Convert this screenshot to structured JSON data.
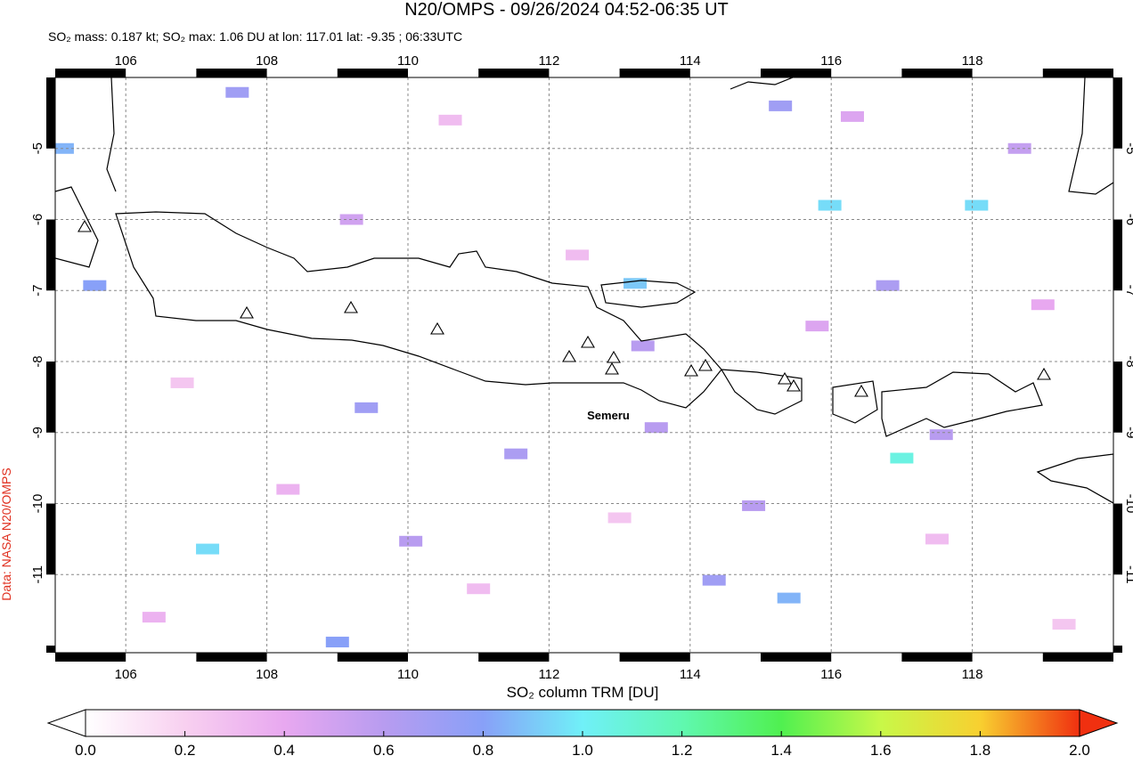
{
  "title": "N20/OMPS - 09/26/2024 04:52-06:35 UT",
  "subtitle": "SO₂ mass: 0.187 kt; SO₂ max: 1.06 DU at lon: 117.01 lat: -9.35 ; 06:33UTC",
  "credit": "Data: NASA N20/OMPS",
  "volcano_label": "Semeru",
  "map": {
    "xlim": [
      105,
      120
    ],
    "ylim": [
      -12.1,
      -4
    ],
    "xticks": [
      106,
      108,
      110,
      112,
      114,
      116,
      118
    ],
    "yticks": [
      -5,
      -6,
      -7,
      -8,
      -9,
      -10,
      -11
    ],
    "grid": true
  },
  "colorbar": {
    "label": "SO₂ column TRM [DU]",
    "clim": [
      0,
      2
    ],
    "colors": [
      "#ffffff",
      "#f8d0f0",
      "#e8a8f0",
      "#b89cf0",
      "#88a0f8",
      "#70f0f8",
      "#60f8b0",
      "#50f050",
      "#c8f848",
      "#f8d030",
      "#f03010"
    ],
    "ticks": [
      {
        "value": 0,
        "label": "0.0"
      },
      {
        "value": 0.2,
        "label": "0.2"
      },
      {
        "value": 0.4,
        "label": "0.4"
      },
      {
        "value": 0.6,
        "label": "0.6"
      },
      {
        "value": 0.8,
        "label": "0.8"
      },
      {
        "value": 1,
        "label": "1.0"
      },
      {
        "value": 1.2,
        "label": "1.2"
      },
      {
        "value": 1.4,
        "label": "1.4"
      },
      {
        "value": 1.6,
        "label": "1.6"
      },
      {
        "value": 1.8,
        "label": "1.8"
      },
      {
        "value": 2,
        "label": "2.0"
      }
    ]
  },
  "so2_pixels": [
    {
      "lon": 113.22,
      "lat": -6.9,
      "value": 0.9
    },
    {
      "lon": 115.98,
      "lat": -5.8,
      "value": 0.95
    },
    {
      "lon": 117.0,
      "lat": -9.36,
      "value": 1.06
    },
    {
      "lon": 118.06,
      "lat": -5.8,
      "value": 0.95
    },
    {
      "lon": 115.4,
      "lat": -11.33,
      "value": 0.85
    },
    {
      "lon": 107.16,
      "lat": -10.64,
      "value": 0.95
    },
    {
      "lon": 105.1,
      "lat": -5.0,
      "value": 0.85
    },
    {
      "lon": 105.56,
      "lat": -6.93,
      "value": 0.8
    },
    {
      "lon": 115.28,
      "lat": -4.4,
      "value": 0.7
    },
    {
      "lon": 107.58,
      "lat": -4.21,
      "value": 0.7
    },
    {
      "lon": 116.8,
      "lat": -6.93,
      "value": 0.65
    },
    {
      "lon": 114.34,
      "lat": -11.08,
      "value": 0.7
    },
    {
      "lon": 114.9,
      "lat": -10.03,
      "value": 0.6
    },
    {
      "lon": 109.41,
      "lat": -8.65,
      "value": 0.7
    },
    {
      "lon": 111.53,
      "lat": -9.3,
      "value": 0.65
    },
    {
      "lon": 109.0,
      "lat": -11.95,
      "value": 0.8
    },
    {
      "lon": 110.04,
      "lat": -10.53,
      "value": 0.6
    },
    {
      "lon": 113.33,
      "lat": -7.78,
      "value": 0.6
    },
    {
      "lon": 113.52,
      "lat": -8.93,
      "value": 0.6
    },
    {
      "lon": 117.56,
      "lat": -9.03,
      "value": 0.6
    },
    {
      "lon": 118.67,
      "lat": -5.0,
      "value": 0.55
    },
    {
      "lon": 116.3,
      "lat": -4.55,
      "value": 0.45
    },
    {
      "lon": 109.2,
      "lat": -6.0,
      "value": 0.5
    },
    {
      "lon": 112.4,
      "lat": -6.5,
      "value": 0.3
    },
    {
      "lon": 106.8,
      "lat": -8.3,
      "value": 0.25
    },
    {
      "lon": 108.3,
      "lat": -9.8,
      "value": 0.35
    },
    {
      "lon": 111.0,
      "lat": -11.2,
      "value": 0.3
    },
    {
      "lon": 113.0,
      "lat": -10.2,
      "value": 0.25
    },
    {
      "lon": 117.5,
      "lat": -10.5,
      "value": 0.3
    },
    {
      "lon": 119.0,
      "lat": -7.2,
      "value": 0.4
    },
    {
      "lon": 110.6,
      "lat": -4.6,
      "value": 0.3
    },
    {
      "lon": 115.8,
      "lat": -7.5,
      "value": 0.45
    },
    {
      "lon": 106.4,
      "lat": -11.6,
      "value": 0.35
    },
    {
      "lon": 119.3,
      "lat": -11.7,
      "value": 0.25
    }
  ]
}
